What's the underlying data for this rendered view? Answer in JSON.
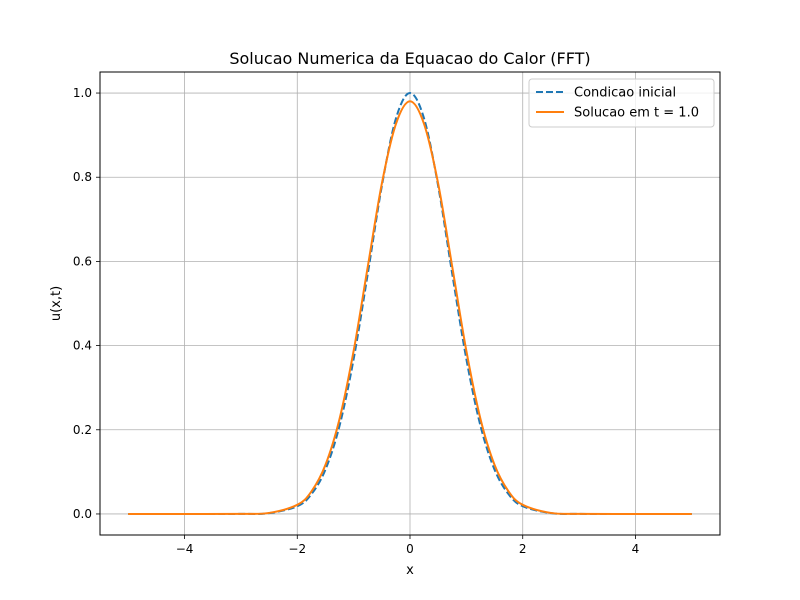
{
  "chart_data": {
    "type": "line",
    "title": "Solucao Numerica da Equacao do Calor (FFT)",
    "xlabel": "x",
    "ylabel": "u(x,t)",
    "xlim": [
      -5.5,
      5.5
    ],
    "ylim": [
      -0.05,
      1.05
    ],
    "xticks": [
      -4,
      -2,
      0,
      2,
      4
    ],
    "xtick_labels": [
      "−4",
      "−2",
      "0",
      "2",
      "4"
    ],
    "yticks": [
      0.0,
      0.2,
      0.4,
      0.6,
      0.8,
      1.0
    ],
    "ytick_labels": [
      "0.0",
      "0.2",
      "0.4",
      "0.6",
      "0.8",
      "1.0"
    ],
    "grid": true,
    "legend_position": "top-right",
    "series": [
      {
        "name": "Condicao inicial",
        "color": "#1f77b4",
        "style": "dashed",
        "x": [
          -5,
          -4,
          -3,
          -2.5,
          -2,
          -1.75,
          -1.5,
          -1.25,
          -1,
          -0.75,
          -0.5,
          -0.25,
          0,
          0.25,
          0.5,
          0.75,
          1,
          1.25,
          1.5,
          1.75,
          2,
          2.5,
          3,
          4,
          5
        ],
        "y": [
          0.0,
          0.0,
          0.0001,
          0.0019,
          0.0183,
          0.0468,
          0.1054,
          0.2096,
          0.3679,
          0.5698,
          0.7788,
          0.9394,
          1.0,
          0.9394,
          0.7788,
          0.5698,
          0.3679,
          0.2096,
          0.1054,
          0.0468,
          0.0183,
          0.0019,
          0.0001,
          0.0,
          0.0
        ]
      },
      {
        "name": "Solucao em t = 1.0",
        "color": "#ff7f0e",
        "style": "solid",
        "x": [
          -5,
          -4,
          -3,
          -2.5,
          -2,
          -1.75,
          -1.5,
          -1.25,
          -1,
          -0.75,
          -0.5,
          -0.25,
          0,
          0.25,
          0.5,
          0.75,
          1,
          1.25,
          1.5,
          1.75,
          2,
          2.5,
          3,
          4,
          5
        ],
        "y": [
          0.0,
          0.0,
          0.0002,
          0.0024,
          0.0217,
          0.0533,
          0.1166,
          0.226,
          0.3875,
          0.5868,
          0.7847,
          0.9263,
          0.9804,
          0.9263,
          0.7847,
          0.5868,
          0.3875,
          0.226,
          0.1166,
          0.0533,
          0.0217,
          0.0024,
          0.0002,
          0.0,
          0.0
        ]
      }
    ]
  }
}
